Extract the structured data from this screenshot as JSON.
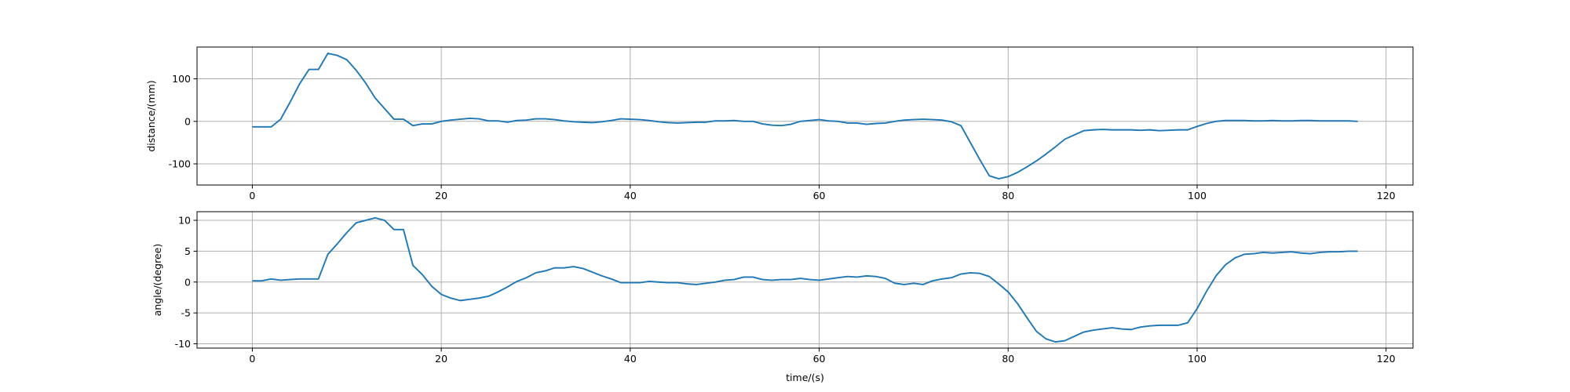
{
  "chart_data": [
    {
      "type": "line",
      "ylabel": "distance/(mm)",
      "color": "#1f77b4",
      "grid": true,
      "x": [
        0,
        1,
        2,
        3,
        4,
        5,
        6,
        7,
        8,
        9,
        10,
        11,
        12,
        13,
        14,
        15,
        16,
        17,
        18,
        19,
        20,
        21,
        22,
        23,
        24,
        25,
        26,
        27,
        28,
        29,
        30,
        31,
        32,
        33,
        34,
        35,
        36,
        37,
        38,
        39,
        40,
        41,
        42,
        43,
        44,
        45,
        46,
        47,
        48,
        49,
        50,
        51,
        52,
        53,
        54,
        55,
        56,
        57,
        58,
        59,
        60,
        61,
        62,
        63,
        64,
        65,
        66,
        67,
        68,
        69,
        70,
        71,
        72,
        73,
        74,
        75,
        76,
        77,
        78,
        79,
        80,
        81,
        82,
        83,
        84,
        85,
        86,
        87,
        88,
        89,
        90,
        91,
        92,
        93,
        94,
        95,
        96,
        97,
        98,
        99,
        100,
        101,
        102,
        103,
        104,
        105,
        106,
        107,
        108,
        109,
        110,
        111,
        112,
        113,
        114,
        115,
        116,
        117
      ],
      "values": [
        -13,
        -13,
        -13,
        5,
        45,
        88,
        122,
        122,
        160,
        155,
        145,
        120,
        90,
        55,
        30,
        5,
        5,
        -10,
        -6,
        -6,
        0,
        3,
        5,
        7,
        6,
        1,
        1,
        -2,
        2,
        3,
        6,
        6,
        4,
        1,
        -1,
        -2,
        -3,
        -1,
        2,
        6,
        5,
        4,
        2,
        -1,
        -3,
        -4,
        -3,
        -2,
        -2,
        1,
        1,
        2,
        0,
        0,
        -6,
        -9,
        -10,
        -7,
        0,
        2,
        4,
        1,
        0,
        -4,
        -4,
        -7,
        -5,
        -4,
        0,
        3,
        4,
        5,
        4,
        3,
        -1,
        -10,
        -50,
        -90,
        -128,
        -135,
        -130,
        -120,
        -107,
        -93,
        -77,
        -60,
        -42,
        -32,
        -22,
        -20,
        -19,
        -20,
        -20,
        -20,
        -21,
        -20,
        -22,
        -21,
        -20,
        -20,
        -12,
        -5,
        0,
        2,
        2,
        2,
        1,
        1,
        2,
        1,
        1,
        2,
        2,
        1,
        1,
        1,
        1,
        0
      ],
      "xlim": [
        -5.85,
        122.85
      ],
      "xticks": [
        0,
        20,
        40,
        60,
        80,
        100,
        120
      ],
      "ylim": [
        -149.75,
        174.75
      ],
      "yticks": [
        -100,
        0,
        100
      ]
    },
    {
      "type": "line",
      "xlabel": "time/(s)",
      "ylabel": "angle/(degree)",
      "color": "#1f77b4",
      "grid": true,
      "x": [
        0,
        1,
        2,
        3,
        4,
        5,
        6,
        7,
        8,
        9,
        10,
        11,
        12,
        13,
        14,
        15,
        16,
        17,
        18,
        19,
        20,
        21,
        22,
        23,
        24,
        25,
        26,
        27,
        28,
        29,
        30,
        31,
        32,
        33,
        34,
        35,
        36,
        37,
        38,
        39,
        40,
        41,
        42,
        43,
        44,
        45,
        46,
        47,
        48,
        49,
        50,
        51,
        52,
        53,
        54,
        55,
        56,
        57,
        58,
        59,
        60,
        61,
        62,
        63,
        64,
        65,
        66,
        67,
        68,
        69,
        70,
        71,
        72,
        73,
        74,
        75,
        76,
        77,
        78,
        79,
        80,
        81,
        82,
        83,
        84,
        85,
        86,
        87,
        88,
        89,
        90,
        91,
        92,
        93,
        94,
        95,
        96,
        97,
        98,
        99,
        100,
        101,
        102,
        103,
        104,
        105,
        106,
        107,
        108,
        109,
        110,
        111,
        112,
        113,
        114,
        115,
        116,
        117
      ],
      "values": [
        0.2,
        0.2,
        0.5,
        0.3,
        0.4,
        0.5,
        0.5,
        0.5,
        4.5,
        6.2,
        8,
        9.6,
        10,
        10.4,
        10,
        8.5,
        8.5,
        2.7,
        1.2,
        -0.7,
        -2,
        -2.6,
        -3,
        -2.8,
        -2.6,
        -2.3,
        -1.6,
        -0.8,
        0.1,
        0.7,
        1.5,
        1.8,
        2.3,
        2.3,
        2.5,
        2.2,
        1.6,
        1,
        0.5,
        -0.1,
        -0.1,
        -0.1,
        0.1,
        0,
        -0.1,
        -0.1,
        -0.3,
        -0.4,
        -0.2,
        0,
        0.3,
        0.4,
        0.8,
        0.8,
        0.4,
        0.3,
        0.4,
        0.4,
        0.6,
        0.4,
        0.3,
        0.5,
        0.7,
        0.9,
        0.8,
        1,
        0.9,
        0.6,
        -0.2,
        -0.4,
        -0.2,
        -0.4,
        0.2,
        0.5,
        0.7,
        1.3,
        1.5,
        1.4,
        0.9,
        -0.3,
        -1.6,
        -3.5,
        -5.8,
        -8,
        -9.2,
        -9.7,
        -9.5,
        -8.8,
        -8.1,
        -7.8,
        -7.6,
        -7.4,
        -7.6,
        -7.7,
        -7.3,
        -7.1,
        -7,
        -7,
        -7,
        -6.6,
        -4.3,
        -1.5,
        1,
        2.8,
        3.9,
        4.5,
        4.6,
        4.8,
        4.7,
        4.8,
        4.9,
        4.7,
        4.6,
        4.8,
        4.9,
        4.9,
        5,
        5
      ],
      "xlim": [
        -5.85,
        122.85
      ],
      "xticks": [
        0,
        20,
        40,
        60,
        80,
        100,
        120
      ],
      "ylim": [
        -10.7,
        11.4
      ],
      "yticks": [
        -10,
        -5,
        0,
        5,
        10
      ]
    }
  ]
}
